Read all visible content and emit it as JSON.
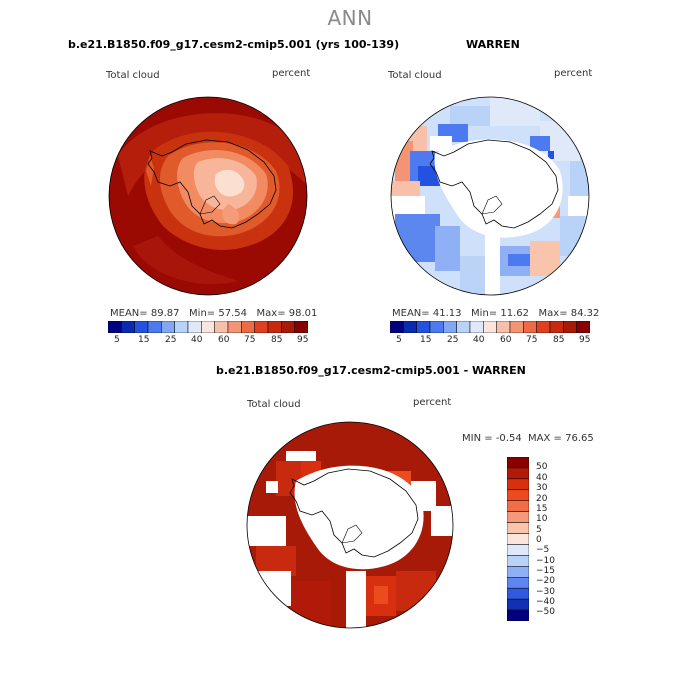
{
  "main_title": "ANN",
  "panels": [
    {
      "case_title": "b.e21.B1850.f09_g17.cesm2-cmip5.001 (yrs 100-139)",
      "variable": "Total cloud",
      "units": "percent",
      "stats": {
        "mean_label": "MEAN=",
        "mean": "89.87",
        "min_label": "Min=",
        "min": "57.54",
        "max_label": "Max=",
        "max": "98.01"
      },
      "colorbar_ticks": [
        "5",
        "15",
        "25",
        "40",
        "60",
        "75",
        "85",
        "95"
      ]
    },
    {
      "case_title": "WARREN",
      "variable": "Total cloud",
      "units": "percent",
      "stats": {
        "mean_label": "MEAN=",
        "mean": "41.13",
        "min_label": "Min=",
        "min": "11.62",
        "max_label": "Max=",
        "max": "84.32"
      },
      "colorbar_ticks": [
        "5",
        "15",
        "25",
        "40",
        "60",
        "75",
        "85",
        "95"
      ]
    },
    {
      "case_title": "b.e21.B1850.f09_g17.cesm2-cmip5.001 - WARREN",
      "variable": "Total cloud",
      "units": "percent",
      "stats": {
        "min_label": "MIN =",
        "min": "-0.54",
        "max_label": "MAX =",
        "max": "76.65"
      },
      "colorbar_ticks": [
        "50",
        "40",
        "30",
        "20",
        "15",
        "10",
        "5",
        "0",
        "−5",
        "−10",
        "−15",
        "−20",
        "−30",
        "−40",
        "−50"
      ]
    }
  ],
  "colors": {
    "abs_scale": [
      "#000080",
      "#0a2bb0",
      "#2452e0",
      "#4d7af0",
      "#82a8f5",
      "#b9d2f8",
      "#dfe9f9",
      "#fbe5dc",
      "#f8c0a8",
      "#f39575",
      "#ec6a45",
      "#e04020",
      "#c82a10",
      "#a81a08",
      "#880000"
    ],
    "diff_scale": [
      "#880000",
      "#b11a08",
      "#d8300f",
      "#ec4a1f",
      "#f26e48",
      "#f59a78",
      "#f9c4ac",
      "#fbe5dc",
      "#dfe9f9",
      "#b9d2f8",
      "#8fb0f5",
      "#5f86f0",
      "#2f5ae0",
      "#1030b5",
      "#000080"
    ]
  }
}
